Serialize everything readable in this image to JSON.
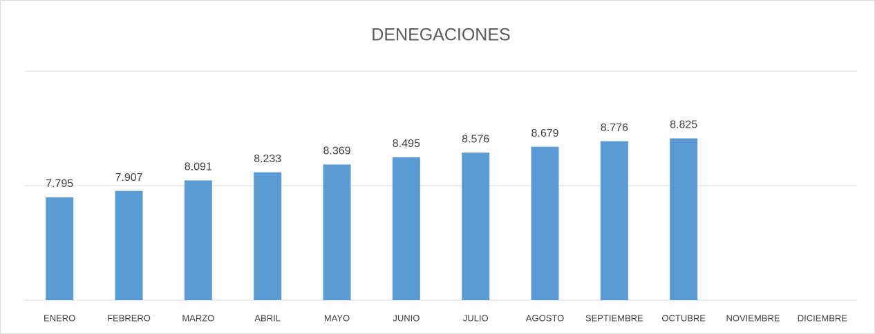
{
  "chart_data": {
    "type": "bar",
    "title": "DENEGACIONES",
    "categories": [
      "ENERO",
      "FEBRERO",
      "MARZO",
      "ABRIL",
      "MAYO",
      "JUNIO",
      "JULIO",
      "AGOSTO",
      "SEPTIEMBRE",
      "OCTUBRE",
      "NOVIEMBRE",
      "DICIEMBRE"
    ],
    "values": [
      7795,
      7907,
      8091,
      8233,
      8369,
      8495,
      8576,
      8679,
      8776,
      8825,
      null,
      null
    ],
    "value_labels": [
      "7.795",
      "7.907",
      "8.091",
      "8.233",
      "8.369",
      "8.495",
      "8.576",
      "8.679",
      "8.776",
      "8.825",
      null,
      null
    ],
    "color": "#5b9bd5",
    "ylim": [
      6000,
      10000
    ],
    "yticks": [
      6000,
      8000,
      10000
    ],
    "grid": true
  }
}
